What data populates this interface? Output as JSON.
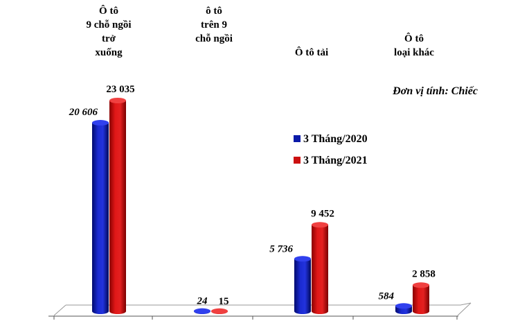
{
  "chart_data": {
    "type": "bar",
    "categories": [
      [
        "Ô tô",
        "9 chỗ ngồi",
        "trở",
        "xuống"
      ],
      [
        "ô tô",
        "trên 9",
        "chỗ ngồi"
      ],
      [
        "Ô tô tải"
      ],
      [
        "Ô tô",
        "loại khác"
      ]
    ],
    "series": [
      {
        "name": "3 Tháng/2020",
        "values": [
          20606,
          24,
          5736,
          584
        ],
        "labels": [
          "20 606",
          "24",
          "5 736",
          "584"
        ],
        "color": "#0a1aa8"
      },
      {
        "name": "3 Tháng/2021",
        "values": [
          23035,
          15,
          9452,
          2858
        ],
        "labels": [
          "23 035",
          "15",
          "9 452",
          "2 858"
        ],
        "color": "#cc1010"
      }
    ],
    "unit_note": "Đơn vị tính: Chiếc",
    "ylim": [
      0,
      23035
    ],
    "legend_position": "center-right",
    "grid": false
  }
}
